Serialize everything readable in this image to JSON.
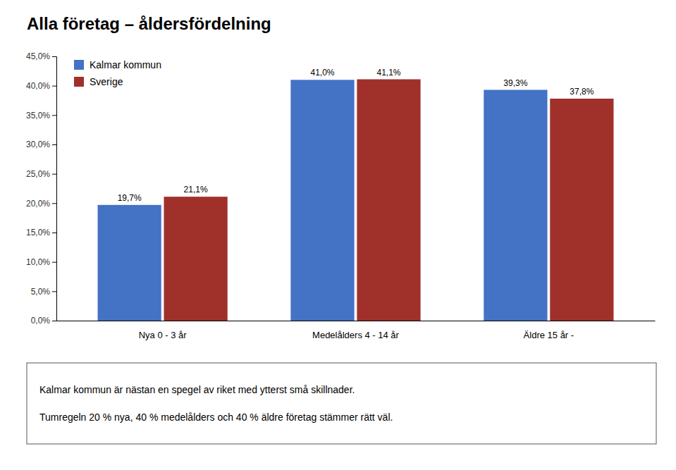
{
  "chart_data": {
    "type": "bar",
    "title": "Alla företag – åldersfördelning",
    "categories": [
      "Nya 0 - 3 år",
      "Medelålders 4 - 14 år",
      "Äldre 15 år -"
    ],
    "series": [
      {
        "name": "Kalmar kommun",
        "color": "#4472C4",
        "values": [
          19.7,
          41.0,
          39.3
        ],
        "value_labels": [
          "19,7%",
          "41,0%",
          "39,3%"
        ]
      },
      {
        "name": "Sverige",
        "color": "#A0302A",
        "values": [
          21.1,
          41.1,
          37.8
        ],
        "value_labels": [
          "21,1%",
          "41,1%",
          "37,8%"
        ]
      }
    ],
    "ylim": [
      0,
      45
    ],
    "yticks": [
      {
        "value": 0,
        "label": "0,0%"
      },
      {
        "value": 5,
        "label": "5,0%"
      },
      {
        "value": 10,
        "label": "10,0%"
      },
      {
        "value": 15,
        "label": "15,0%"
      },
      {
        "value": 20,
        "label": "20,0%"
      },
      {
        "value": 25,
        "label": "25,0%"
      },
      {
        "value": 30,
        "label": "30,0%"
      },
      {
        "value": 35,
        "label": "35,0%"
      },
      {
        "value": 40,
        "label": "40,0%"
      },
      {
        "value": 45,
        "label": "45,0%"
      }
    ],
    "grid": false,
    "legend": "upper left",
    "data_labels": true,
    "annotations": [
      "Kalmar kommun är nästan en spegel av riket med ytterst små skillnader.",
      "Tumregeln 20 % nya, 40 % medelålders och 40 % äldre företag stämmer rätt väl."
    ]
  }
}
